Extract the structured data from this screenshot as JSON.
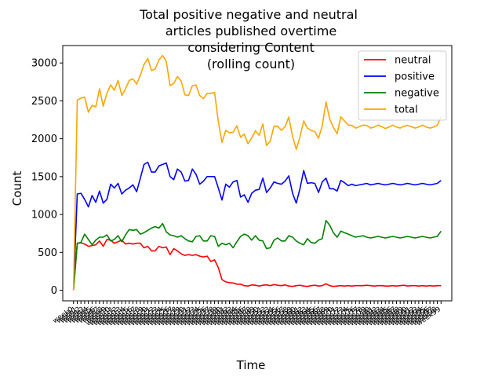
{
  "chart_data": {
    "type": "line",
    "title_lines": [
      "Total positive negative and neutral",
      "articles published overtime",
      "considering Content",
      "(rolling count)"
    ],
    "xlabel": "Time",
    "ylabel": "Count",
    "ylim": [
      -140,
      3230
    ],
    "yticks": [
      0,
      500,
      1000,
      1500,
      2000,
      2500,
      3000
    ],
    "legend_position": "top-right",
    "x_tick_labels_note": "dense overlapping week labels (illegible)",
    "x": [
      0,
      1,
      2,
      3,
      4,
      5,
      6,
      7,
      8,
      9,
      10,
      11,
      12,
      13,
      14,
      15,
      16,
      17,
      18,
      19,
      20,
      21,
      22,
      23,
      24,
      25,
      26,
      27,
      28,
      29,
      30,
      31,
      32,
      33,
      34,
      35,
      36,
      37,
      38,
      39,
      40,
      41,
      42,
      43,
      44,
      45,
      46,
      47,
      48,
      49,
      50,
      51,
      52,
      53,
      54,
      55,
      56,
      57,
      58,
      59,
      60,
      61,
      62,
      63,
      64,
      65,
      66,
      67,
      68,
      69,
      70,
      71,
      72,
      73,
      74,
      75,
      76,
      77,
      78,
      79,
      80,
      81,
      82,
      83,
      84,
      85,
      86,
      87,
      88,
      89,
      90,
      91,
      92,
      93,
      94,
      95,
      96,
      97,
      98,
      99
    ],
    "x_tick_labels": [
      "week0",
      "week1",
      "week2",
      "week3",
      "week4",
      "week5",
      "week6",
      "week7",
      "week8",
      "week9",
      "week10",
      "week11",
      "week12",
      "week13",
      "week14",
      "week15",
      "week16",
      "week17",
      "week18",
      "week19",
      "week20",
      "week21",
      "week22",
      "week23",
      "week24",
      "week25",
      "week26",
      "week27",
      "week28",
      "week29",
      "week30",
      "week31",
      "week32",
      "week33",
      "week34",
      "week35",
      "week36",
      "week37",
      "week38",
      "week39",
      "week40",
      "week41",
      "week42",
      "week43",
      "week44",
      "week45",
      "week46",
      "week47",
      "week48",
      "week49",
      "week50",
      "week51",
      "week52",
      "week53",
      "week54",
      "week55",
      "week56",
      "week57",
      "week58",
      "week59",
      "week60",
      "week61",
      "week62",
      "week63",
      "week64",
      "week65",
      "week66",
      "week67",
      "week68",
      "week69",
      "week70",
      "week71",
      "week72",
      "week73",
      "week74",
      "week75",
      "week76",
      "week77",
      "week78",
      "week79",
      "week80",
      "week81",
      "week82",
      "week83",
      "week84",
      "week85",
      "week86",
      "week87",
      "week88",
      "week89",
      "week90",
      "week91",
      "week92",
      "week93",
      "week94",
      "week95",
      "week96",
      "week97",
      "week98",
      "week99"
    ],
    "series": [
      {
        "name": "neutral",
        "color": "#ff0000",
        "values": [
          0,
          620,
          625,
          610,
          580,
          590,
          600,
          650,
          580,
          670,
          660,
          620,
          640,
          660,
          610,
          620,
          610,
          620,
          620,
          560,
          580,
          520,
          520,
          580,
          560,
          570,
          470,
          550,
          520,
          480,
          460,
          470,
          460,
          470,
          450,
          440,
          450,
          380,
          400,
          300,
          140,
          110,
          100,
          95,
          80,
          80,
          60,
          55,
          70,
          65,
          55,
          65,
          70,
          60,
          75,
          65,
          60,
          70,
          55,
          50,
          60,
          65,
          55,
          50,
          60,
          65,
          55,
          60,
          85,
          60,
          50,
          55,
          60,
          55,
          60,
          55,
          60,
          60,
          60,
          65,
          60,
          55,
          60,
          60,
          55,
          55,
          60,
          55,
          60,
          65,
          55,
          60,
          60,
          55,
          60,
          55,
          60,
          55,
          60,
          60
        ]
      },
      {
        "name": "positive",
        "color": "#0000ff",
        "values": [
          0,
          1270,
          1280,
          1200,
          1100,
          1250,
          1160,
          1310,
          1150,
          1200,
          1400,
          1350,
          1410,
          1270,
          1320,
          1350,
          1390,
          1300,
          1480,
          1660,
          1690,
          1560,
          1560,
          1640,
          1660,
          1680,
          1500,
          1460,
          1600,
          1560,
          1440,
          1450,
          1600,
          1530,
          1400,
          1440,
          1500,
          1500,
          1500,
          1350,
          1190,
          1400,
          1360,
          1430,
          1450,
          1230,
          1260,
          1160,
          1280,
          1320,
          1330,
          1480,
          1290,
          1350,
          1430,
          1410,
          1400,
          1440,
          1510,
          1280,
          1150,
          1340,
          1580,
          1410,
          1420,
          1410,
          1290,
          1430,
          1480,
          1340,
          1340,
          1310,
          1450,
          1420,
          1380,
          1400,
          1380,
          1390,
          1400,
          1410,
          1390,
          1400,
          1410,
          1400,
          1390,
          1400,
          1410,
          1400,
          1390,
          1400,
          1410,
          1400,
          1390,
          1400,
          1410,
          1400,
          1390,
          1400,
          1410,
          1450
        ]
      },
      {
        "name": "negative",
        "color": "#008000",
        "values": [
          0,
          620,
          630,
          740,
          670,
          600,
          660,
          700,
          700,
          730,
          650,
          670,
          720,
          640,
          730,
          800,
          790,
          800,
          740,
          760,
          790,
          820,
          840,
          820,
          880,
          770,
          730,
          720,
          700,
          720,
          680,
          650,
          640,
          710,
          720,
          650,
          650,
          720,
          710,
          580,
          620,
          600,
          620,
          560,
          640,
          710,
          740,
          720,
          660,
          720,
          660,
          650,
          550,
          560,
          660,
          690,
          650,
          650,
          720,
          700,
          650,
          620,
          600,
          680,
          630,
          620,
          660,
          680,
          920,
          860,
          760,
          700,
          780,
          760,
          740,
          720,
          700,
          710,
          720,
          700,
          690,
          700,
          710,
          700,
          690,
          700,
          710,
          700,
          690,
          700,
          710,
          700,
          690,
          700,
          710,
          700,
          690,
          700,
          710,
          780
        ]
      }
    ]
  }
}
